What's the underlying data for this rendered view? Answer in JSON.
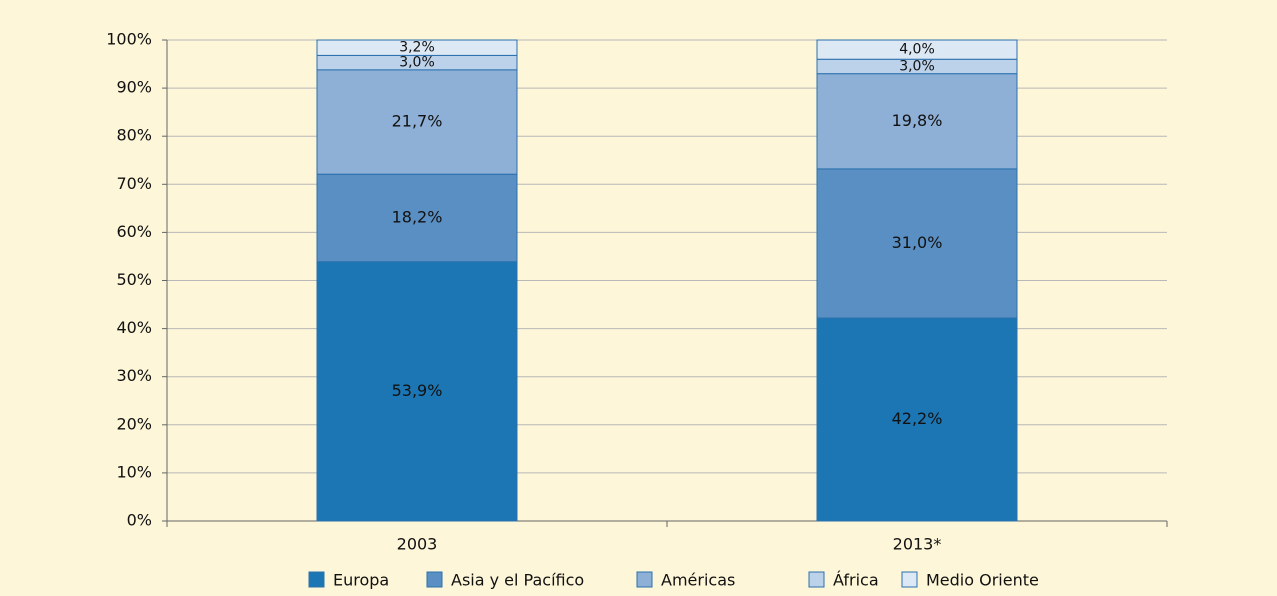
{
  "chart_data": {
    "type": "stacked_bar",
    "categories": [
      "2003",
      "2013*"
    ],
    "series": [
      {
        "name": "Europa",
        "color": "#1c76b4",
        "values": [
          53.9,
          42.2
        ],
        "value_labels": [
          "53,9%",
          "42,2%"
        ]
      },
      {
        "name": "Asia y el Pacífico",
        "color": "#5a8fc3",
        "values": [
          18.2,
          31.0
        ],
        "value_labels": [
          "18,2%",
          "31,0%"
        ]
      },
      {
        "name": "Américas",
        "color": "#8eafd6",
        "values": [
          21.7,
          19.8
        ],
        "value_labels": [
          "21,7%",
          "19,8%"
        ]
      },
      {
        "name": "África",
        "color": "#bcd1ea",
        "values": [
          3.0,
          3.0
        ],
        "value_labels": [
          "3,0%",
          "3,0%"
        ]
      },
      {
        "name": "Medio Oriente",
        "color": "#dde8f5",
        "values": [
          3.2,
          4.0
        ],
        "value_labels": [
          "3,2%",
          "4,0%"
        ]
      }
    ],
    "ylim": [
      0,
      100
    ],
    "yticks": [
      {
        "value": 0,
        "label": "0%"
      },
      {
        "value": 10,
        "label": "10%"
      },
      {
        "value": 20,
        "label": "20%"
      },
      {
        "value": 30,
        "label": "30%"
      },
      {
        "value": 40,
        "label": "40%"
      },
      {
        "value": 50,
        "label": "50%"
      },
      {
        "value": 60,
        "label": "60%"
      },
      {
        "value": 70,
        "label": "70%"
      },
      {
        "value": 80,
        "label": "80%"
      },
      {
        "value": 90,
        "label": "90%"
      },
      {
        "value": 100,
        "label": "100%"
      }
    ],
    "grid": true,
    "legend": "bottom"
  }
}
